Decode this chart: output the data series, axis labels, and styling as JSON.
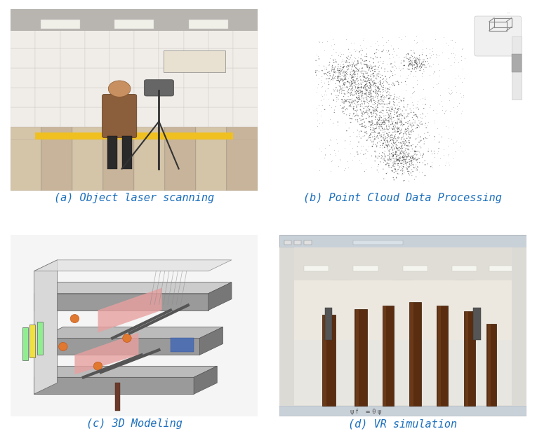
{
  "captions": [
    "(a) Object laser scanning",
    "(b) Point Cloud Data Processing",
    "(c) 3D Modeling",
    "(d) VR simulation"
  ],
  "caption_color": "#1a6ebd",
  "caption_fontsize": 11,
  "caption_font": "monospace",
  "background_color": "#ffffff",
  "figsize": [
    7.65,
    6.32
  ],
  "dpi": 100
}
